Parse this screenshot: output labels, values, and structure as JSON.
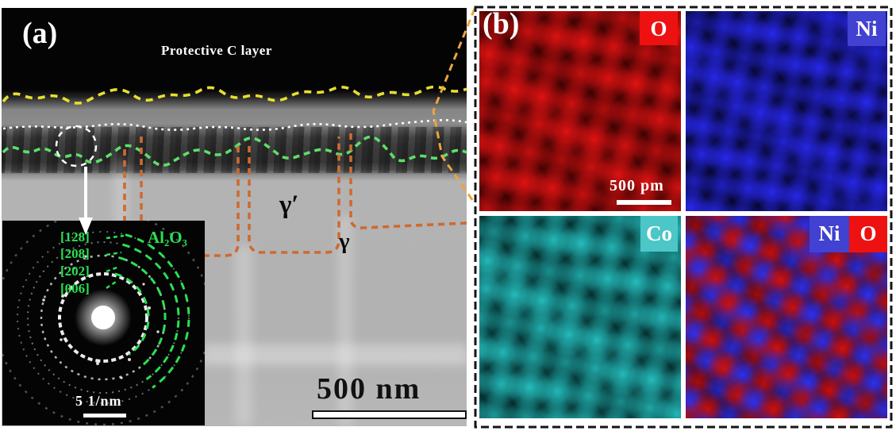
{
  "panel_a": {
    "label": "(a)",
    "c_layer_label": "Protective C layer",
    "gamma_prime_label": "γ′",
    "gamma_label": "γ",
    "scale_bar_text": "500 nm",
    "inset": {
      "phase_label": "Al₂O₃",
      "ring_labels": [
        "[128]",
        "[208]",
        "[202]",
        "[006]"
      ],
      "scale_bar_text": "5 1/nm"
    },
    "colors": {
      "c_layer_interface": "#e7df2e",
      "oxide_interface": "#ffffff",
      "metal_interface": "#5ede68",
      "precipitate_outline": "#cf6a30",
      "callout": "#eda43e",
      "annotation_green": "#2ae052"
    }
  },
  "panel_b": {
    "label": "(b)",
    "scale_bar_text": "500 pm",
    "border_color": "#151515",
    "maps": [
      {
        "name": "oxygen-map",
        "badges": [
          {
            "text": "O",
            "bg": "#ee1111"
          }
        ],
        "lattice": {
          "bg": "#1a0000",
          "colors": [
            "#f01414"
          ],
          "spacing": 38,
          "angle": 12,
          "radius": 17,
          "ox": 22,
          "oy": 16
        }
      },
      {
        "name": "nickel-map",
        "badges": [
          {
            "text": "Ni",
            "bg": "#4141d2"
          }
        ],
        "lattice": {
          "bg": "#000006",
          "colors": [
            "#2b2bff"
          ],
          "spacing": 33,
          "angle": 10,
          "radius": 15,
          "ox": 14,
          "oy": 12
        }
      },
      {
        "name": "cobalt-map",
        "badges": [
          {
            "text": "Co",
            "bg": "#4cc6c6"
          }
        ],
        "lattice": {
          "bg": "#001313",
          "colors": [
            "#28c9c9"
          ],
          "spacing": 38,
          "angle": 9,
          "radius": 17,
          "ox": 18,
          "oy": 18
        }
      },
      {
        "name": "nickel-oxygen-map",
        "badges": [
          {
            "text": "Ni",
            "bg": "#4141d2"
          },
          {
            "text": "O",
            "bg": "#ee1111"
          }
        ],
        "lattice": {
          "bg": "#05000c",
          "colors": [
            "#e01212",
            "#3434ff"
          ],
          "spacing": 26,
          "angle": 22,
          "radius": 14,
          "ox": 12,
          "oy": 10
        }
      }
    ]
  }
}
